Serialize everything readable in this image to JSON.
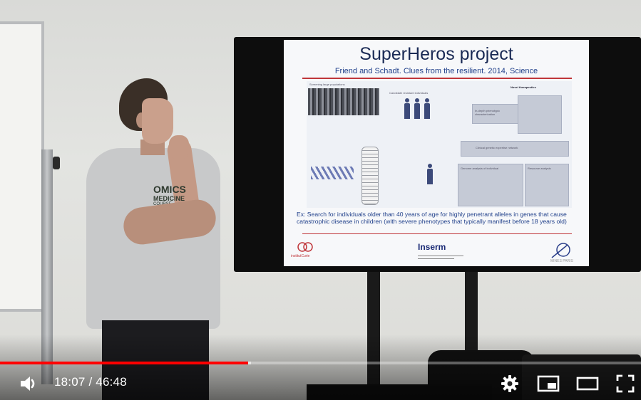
{
  "slide": {
    "title": "SuperHeros project",
    "subtitle": "Friend and Schadt. Clues from the resilient. 2014, Science",
    "body": "Ex: Search for individuals older than 40 years of age for highly penetrant alleles in genes that cause catastrophic disease in children (with severe phenotypes that typically manifest before 18 years old)",
    "figure": {
      "label_screening": "Screening large populations",
      "label_candidates": "Candidate resistant individuals",
      "label_novel": "Novel therapeutics",
      "label_inDepth": "In-depth phenotypic characterization",
      "label_clinical": "Clinical genetic expertise network",
      "label_genome": "Genome analysis of individual",
      "label_resource": "Resource analysis"
    },
    "logos": {
      "curie": "institutCurie",
      "inserm": "Inserm",
      "mines": "MINES PARIS"
    }
  },
  "shirt": {
    "line1": "OMICS",
    "line2": "MEDICINE",
    "line3": "COURSE"
  },
  "player": {
    "current_time": "18:07",
    "duration": "46:48",
    "time_display": "18:07 / 46:48",
    "progress_fraction": 0.387,
    "buffered_fraction": 0.333,
    "colors": {
      "progress": "#ff0000",
      "icons": "#ffffff"
    },
    "icons": {
      "volume": "volume-icon",
      "settings": "gear-icon",
      "miniplayer": "miniplayer-icon",
      "theater": "theater-mode-icon",
      "fullscreen": "fullscreen-icon"
    }
  }
}
